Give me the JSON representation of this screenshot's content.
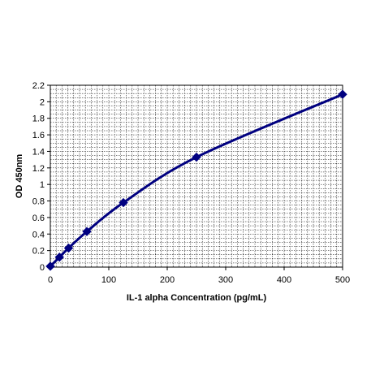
{
  "chart_data": {
    "type": "line",
    "title": "",
    "xlabel": "IL-1 alpha Concentration (pg/mL)",
    "ylabel": "OD 450nm",
    "xlim": [
      0,
      500
    ],
    "ylim": [
      0,
      2.2
    ],
    "x_ticks": [
      0,
      100,
      200,
      300,
      400,
      500
    ],
    "y_ticks": [
      0,
      0.2,
      0.4,
      0.6,
      0.8,
      1,
      1.2,
      1.4,
      1.6,
      1.8,
      2,
      2.2
    ],
    "x_tick_labels": [
      "0",
      "100",
      "200",
      "300",
      "400",
      "500"
    ],
    "y_tick_labels": [
      "0",
      "0.2",
      "0.4",
      "0.6",
      "0.8",
      "1",
      "1.2",
      "1.4",
      "1.6",
      "1.8",
      "2",
      "2.2"
    ],
    "grid": true,
    "series": [
      {
        "x": [
          0,
          15.6,
          31.25,
          62.5,
          125,
          250,
          500
        ],
        "y": [
          0.01,
          0.12,
          0.23,
          0.43,
          0.78,
          1.33,
          2.09
        ],
        "color": "#000080",
        "marker": "diamond"
      }
    ]
  }
}
